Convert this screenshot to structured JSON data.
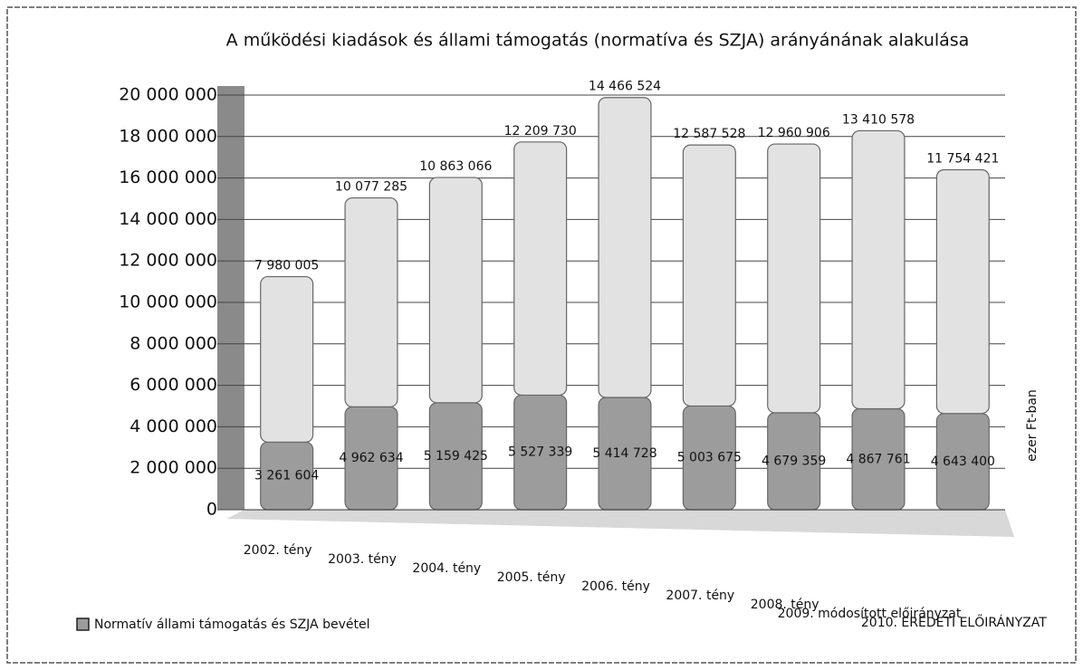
{
  "chart_data": {
    "type": "bar",
    "stacked": true,
    "title": "A működési kiadások és állami támogatás (normatíva és SZJA) arányánának alakulása",
    "y_label": "ezer Ft-ban",
    "categories": [
      "2002. tény",
      "2003. tény",
      "2004. tény",
      "2005. tény",
      "2006. tény",
      "2007. tény",
      "2008. tény",
      "2009. módosított előirányzat",
      "2010. EREDETI ELŐIRÁNYZAT"
    ],
    "series": [
      {
        "name": "Normatív állami támogatás és SZJA bevétel",
        "color": "#9c9c9c",
        "values": [
          3261604,
          4962634,
          5159425,
          5527339,
          5414728,
          5003675,
          4679359,
          4867761,
          4643400
        ],
        "value_labels": [
          "3 261 604",
          "4 962 634",
          "5 159 425",
          "5 527 339",
          "5 414 728",
          "5 003 675",
          "4 679 359",
          "4 867 761",
          "4 643 400"
        ]
      },
      {
        "color": "#e2e2e2",
        "values": [
          7980005,
          10077285,
          10863066,
          12209730,
          14466524,
          12587528,
          12960906,
          13410578,
          11754421
        ],
        "value_labels": [
          "7 980 005",
          "10 077 285",
          "10 863 066",
          "12 209 730",
          "14 466 524",
          "12 587 528",
          "12 960 906",
          "13 410 578",
          "11 754 421"
        ]
      }
    ],
    "ylim": [
      0,
      20000000
    ],
    "yticks": [
      {
        "value": 0,
        "label": "0"
      },
      {
        "value": 2000000,
        "label": "2 000 000"
      },
      {
        "value": 4000000,
        "label": "4 000 000"
      },
      {
        "value": 6000000,
        "label": "6 000 000"
      },
      {
        "value": 8000000,
        "label": "8 000 000"
      },
      {
        "value": 10000000,
        "label": "10 000 000"
      },
      {
        "value": 12000000,
        "label": "12 000 000"
      },
      {
        "value": 14000000,
        "label": "14 000 000"
      },
      {
        "value": 16000000,
        "label": "16 000 000"
      },
      {
        "value": 18000000,
        "label": "18 000 000"
      },
      {
        "value": 20000000,
        "label": "20 000 000"
      }
    ],
    "grid": true,
    "legend": "bottom-left"
  }
}
